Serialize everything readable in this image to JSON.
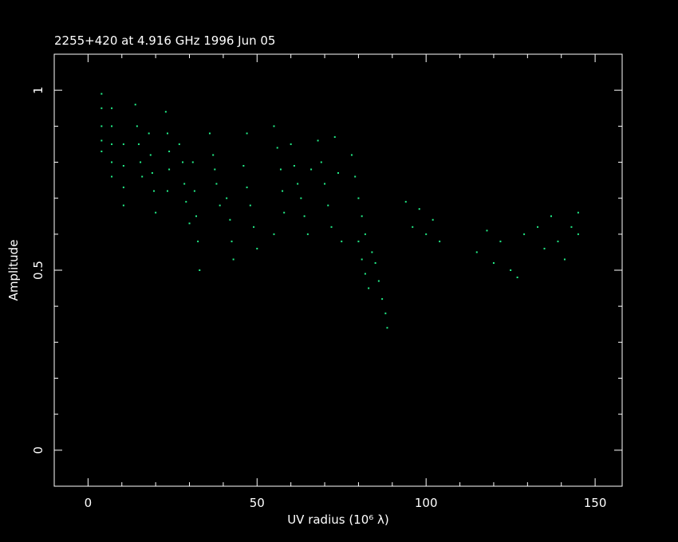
{
  "chart_data": {
    "type": "scatter",
    "title": "2255+420 at 4.916 GHz 1996 Jun 05",
    "xlabel": "UV radius  (10⁶ λ)",
    "ylabel": "Amplitude",
    "xlim": [
      -10,
      158
    ],
    "ylim": [
      -0.1,
      1.1
    ],
    "xticks": [
      0,
      50,
      100,
      150
    ],
    "yticks": [
      0,
      0.5,
      1
    ],
    "xminorticks": [
      -10,
      10,
      20,
      30,
      40,
      60,
      70,
      80,
      90,
      110,
      120,
      130,
      140
    ],
    "yminorticks": [
      -0.1,
      0.1,
      0.2,
      0.3,
      0.4,
      0.6,
      0.7,
      0.8,
      0.9,
      1.1
    ],
    "series": [
      {
        "color": "#22ee88",
        "x": [
          4,
          4,
          4,
          4,
          4,
          7,
          7,
          7,
          7,
          7,
          10.5,
          10.5,
          10.5,
          10.5,
          14,
          14.5,
          15,
          15.5,
          16,
          18,
          18.5,
          19,
          19.5,
          20,
          23,
          23.5,
          24,
          24,
          23.5,
          27,
          28,
          28.5,
          29,
          30,
          31,
          31.5,
          32,
          32.5,
          33,
          36,
          37,
          37.5,
          38,
          39,
          41,
          42,
          42.5,
          43,
          46,
          47,
          48,
          49,
          50,
          47,
          55,
          56,
          57,
          57.5,
          58,
          55,
          60,
          61,
          62,
          63,
          64,
          65,
          66,
          68,
          69,
          70,
          71,
          72,
          73,
          74,
          75,
          78,
          79,
          80,
          81,
          82,
          80,
          81,
          82,
          83,
          84,
          85,
          86,
          87,
          88,
          88.5,
          94,
          96,
          98,
          100,
          102,
          104,
          115,
          118,
          120,
          122,
          125,
          127,
          129,
          133,
          135,
          137,
          139,
          141,
          143,
          145,
          145
        ],
        "values": [
          0.99,
          0.95,
          0.9,
          0.86,
          0.83,
          0.95,
          0.9,
          0.85,
          0.8,
          0.76,
          0.85,
          0.79,
          0.73,
          0.68,
          0.96,
          0.9,
          0.85,
          0.8,
          0.76,
          0.88,
          0.82,
          0.77,
          0.72,
          0.66,
          0.94,
          0.88,
          0.83,
          0.78,
          0.72,
          0.85,
          0.8,
          0.74,
          0.69,
          0.63,
          0.8,
          0.72,
          0.65,
          0.58,
          0.5,
          0.88,
          0.82,
          0.78,
          0.74,
          0.68,
          0.7,
          0.64,
          0.58,
          0.53,
          0.79,
          0.73,
          0.68,
          0.62,
          0.56,
          0.88,
          0.9,
          0.84,
          0.78,
          0.72,
          0.66,
          0.6,
          0.85,
          0.79,
          0.74,
          0.7,
          0.65,
          0.6,
          0.78,
          0.86,
          0.8,
          0.74,
          0.68,
          0.62,
          0.87,
          0.77,
          0.58,
          0.82,
          0.76,
          0.7,
          0.65,
          0.6,
          0.58,
          0.53,
          0.49,
          0.45,
          0.55,
          0.52,
          0.47,
          0.42,
          0.38,
          0.34,
          0.69,
          0.62,
          0.67,
          0.6,
          0.64,
          0.58,
          0.55,
          0.61,
          0.52,
          0.58,
          0.5,
          0.48,
          0.6,
          0.62,
          0.56,
          0.65,
          0.58,
          0.53,
          0.62,
          0.66,
          0.6
        ]
      }
    ]
  }
}
